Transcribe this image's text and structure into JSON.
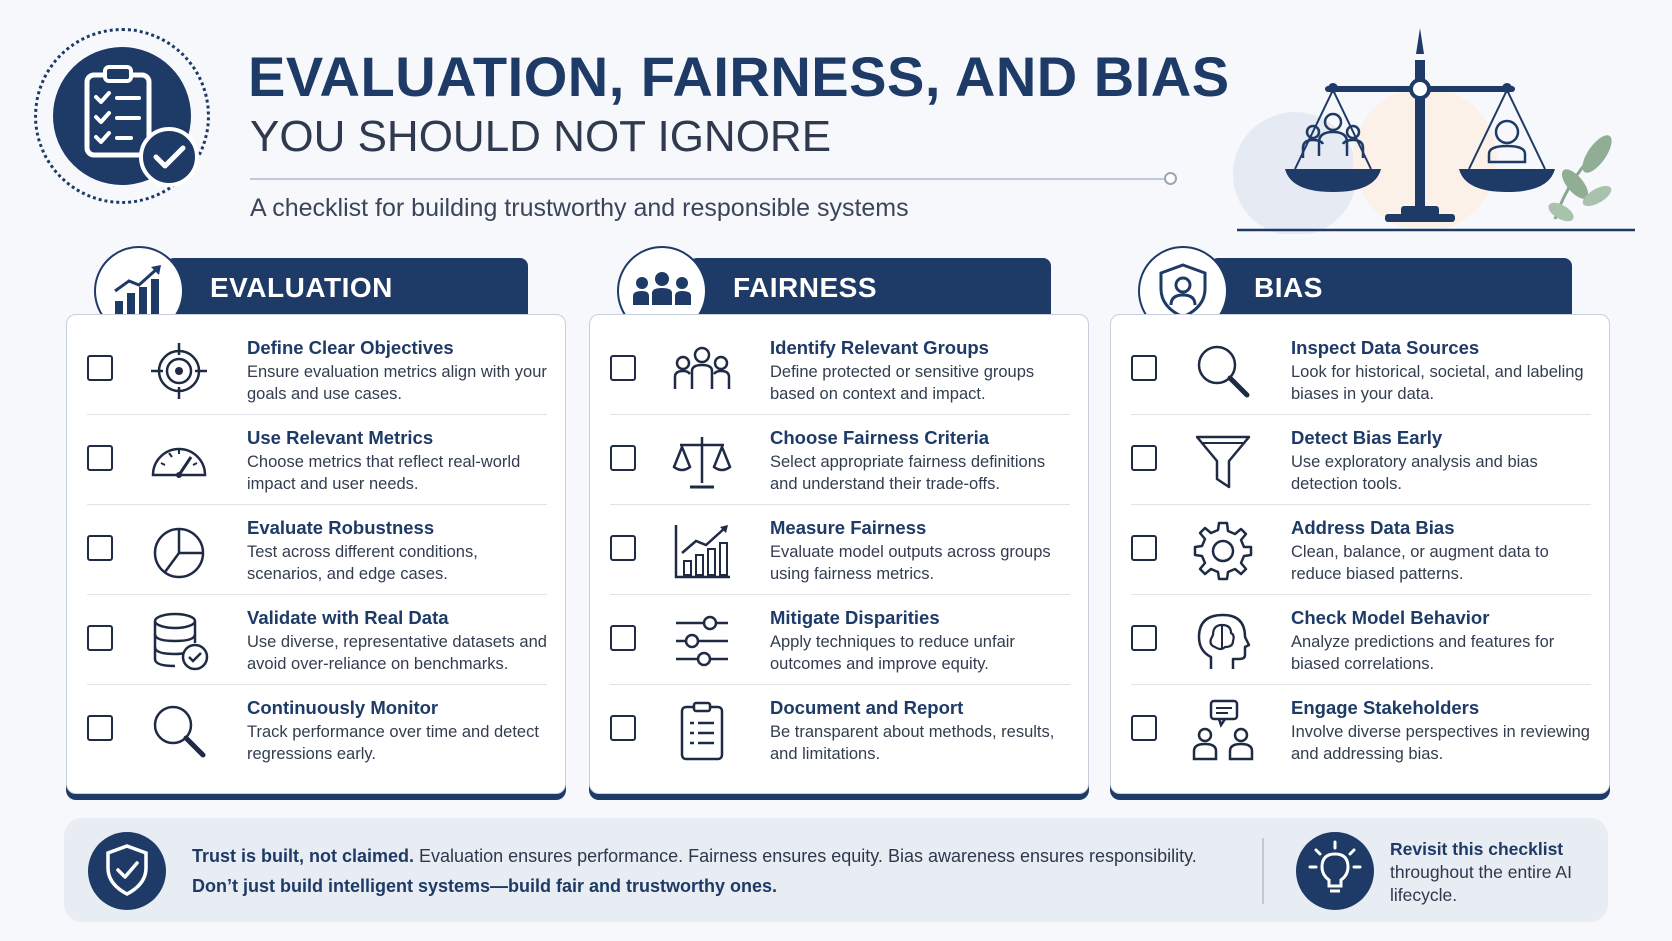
{
  "header": {
    "title": "EVALUATION, FAIRNESS, AND BIAS",
    "subtitle": "YOU SHOULD NOT IGNORE",
    "tagline": "A checklist for building trustworthy and responsible systems",
    "badge_icon": "clipboard-check-icon",
    "illustration_icon": "balance-scale-icon"
  },
  "colors": {
    "navy": "#1e3a66",
    "background": "#f7f8fb",
    "card_border": "#c8cfdc",
    "footer_bg": "#e8ecf3"
  },
  "columns": [
    {
      "heading": "EVALUATION",
      "icon": "growth-chart-icon",
      "items": [
        {
          "title": "Define Clear Objectives",
          "desc": "Ensure evaluation metrics align with your goals and use cases.",
          "icon": "target-icon"
        },
        {
          "title": "Use Relevant Metrics",
          "desc": "Choose metrics that reflect real-world impact and user needs.",
          "icon": "gauge-icon"
        },
        {
          "title": "Evaluate Robustness",
          "desc": "Test across different conditions, scenarios, and edge cases.",
          "icon": "pie-chart-icon"
        },
        {
          "title": "Validate with Real Data",
          "desc": "Use diverse, representative datasets and avoid over-reliance on benchmarks.",
          "icon": "database-check-icon"
        },
        {
          "title": "Continuously Monitor",
          "desc": "Track performance over time and detect regressions early.",
          "icon": "magnifier-icon"
        }
      ]
    },
    {
      "heading": "FAIRNESS",
      "icon": "people-group-icon",
      "items": [
        {
          "title": "Identify Relevant Groups",
          "desc": "Define protected or sensitive groups based on context and impact.",
          "icon": "group-icon"
        },
        {
          "title": "Choose Fairness Criteria",
          "desc": "Select appropriate fairness definitions and understand their trade-offs.",
          "icon": "scale-icon"
        },
        {
          "title": "Measure Fairness",
          "desc": "Evaluate model outputs across groups using fairness metrics.",
          "icon": "bar-trend-icon"
        },
        {
          "title": "Mitigate Disparities",
          "desc": "Apply techniques to reduce unfair outcomes and improve equity.",
          "icon": "sliders-icon"
        },
        {
          "title": "Document and Report",
          "desc": "Be transparent about methods, results, and limitations.",
          "icon": "clipboard-list-icon"
        }
      ]
    },
    {
      "heading": "BIAS",
      "icon": "shield-person-icon",
      "items": [
        {
          "title": "Inspect Data Sources",
          "desc": "Look for historical, societal, and labeling biases in your data.",
          "icon": "magnifier-icon"
        },
        {
          "title": "Detect Bias Early",
          "desc": "Use exploratory analysis and bias detection tools.",
          "icon": "funnel-icon"
        },
        {
          "title": "Address Data Bias",
          "desc": "Clean, balance, or augment data to reduce biased patterns.",
          "icon": "gear-icon"
        },
        {
          "title": "Check Model Behavior",
          "desc": "Analyze predictions and features for biased correlations.",
          "icon": "head-brain-icon"
        },
        {
          "title": "Engage Stakeholders",
          "desc": "Involve diverse perspectives in reviewing and addressing bias.",
          "icon": "people-chat-icon"
        }
      ]
    }
  ],
  "footer": {
    "lead_bold": "Trust is built, not claimed.",
    "lead_rest": " Evaluation ensures performance. Fairness ensures equity. Bias awareness ensures responsibility.",
    "line2": "Don’t just build intelligent systems—build fair and trustworthy ones.",
    "revisit_bold": "Revisit this checklist",
    "revisit_rest": "throughout the entire AI lifecycle.",
    "shield_icon": "shield-check-icon",
    "bulb_icon": "lightbulb-icon"
  }
}
